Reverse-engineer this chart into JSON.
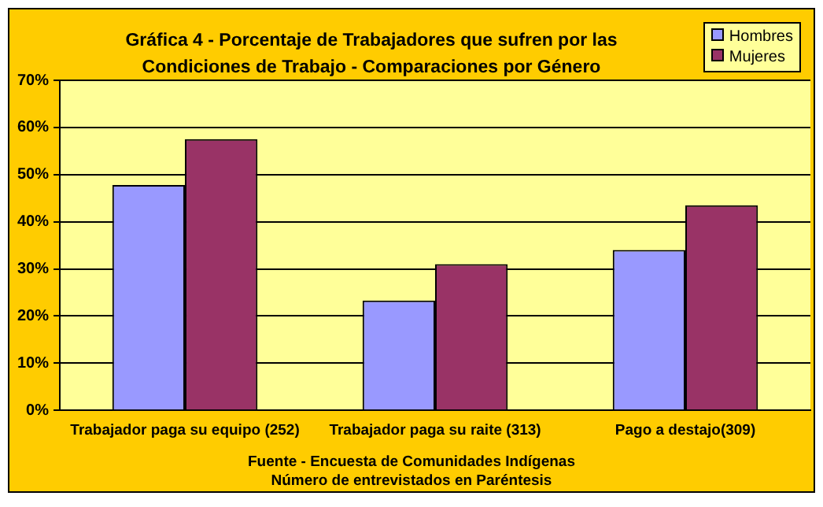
{
  "chart_data": {
    "type": "bar",
    "title": "Gráfica 4 - Porcentaje de Trabajadores que sufren por las Condiciones de Trabajo  - Comparaciones por Género",
    "categories": [
      "Trabajador paga su equipo (252)",
      "Trabajador paga su raite (313)",
      "Pago a destajo(309)"
    ],
    "series": [
      {
        "name": "Hombres",
        "color": "#9999ff",
        "values": [
          47.8,
          23.3,
          34
        ]
      },
      {
        "name": "Mujeres",
        "color": "#993366",
        "values": [
          57.5,
          31,
          43.5
        ]
      }
    ],
    "ylim": [
      0,
      70
    ],
    "yticks": [
      {
        "value": 0,
        "label": "0%"
      },
      {
        "value": 10,
        "label": "10%"
      },
      {
        "value": 20,
        "label": "20%"
      },
      {
        "value": 30,
        "label": "30%"
      },
      {
        "value": 40,
        "label": "40%"
      },
      {
        "value": 50,
        "label": "50%"
      },
      {
        "value": 60,
        "label": "60%"
      },
      {
        "value": 70,
        "label": "70%"
      }
    ],
    "grid": "y",
    "legend": "top right",
    "annotations": [
      "Fuente  - Encuesta de Comunidades Indígenas",
      "Número de entrevistados en Paréntesis"
    ]
  }
}
